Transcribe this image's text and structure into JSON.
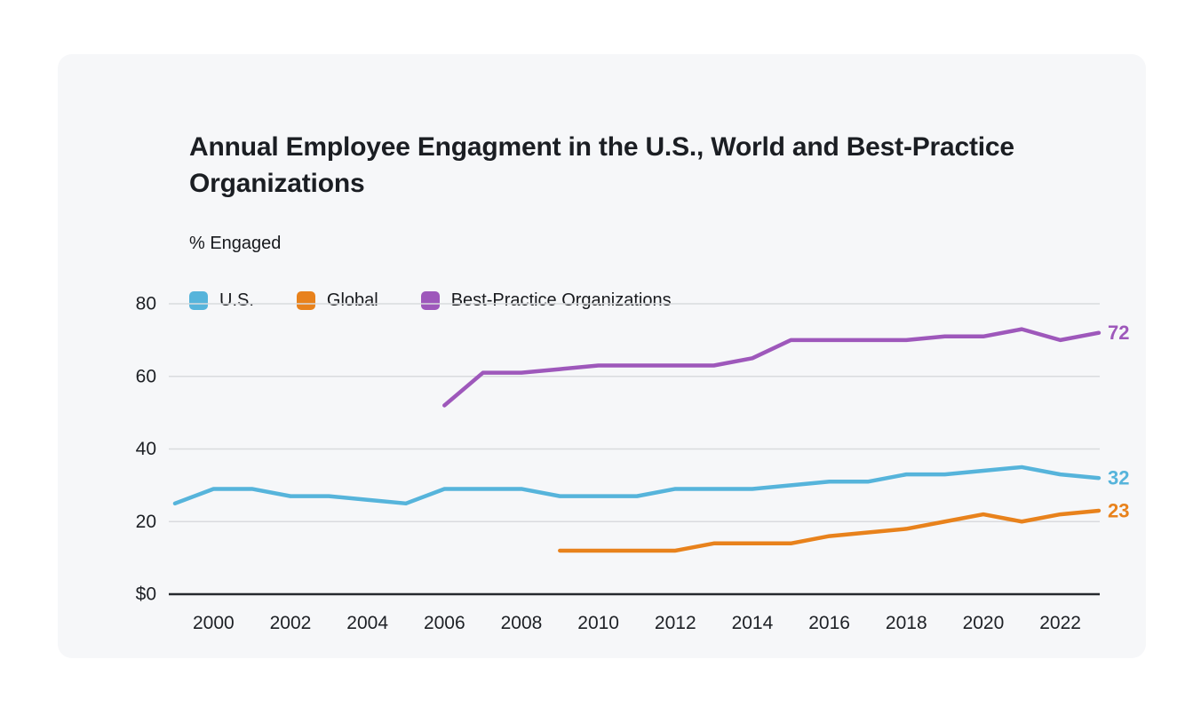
{
  "chart_data": {
    "type": "line",
    "title": "Annual Employee Engagment in the U.S., World and Best-Practice Organizations",
    "ylabel": "% Engaged",
    "grid": true,
    "legend_position": "top-left",
    "x_axis": {
      "ticks": [
        2000,
        2002,
        2004,
        2006,
        2008,
        2010,
        2012,
        2014,
        2016,
        2018,
        2020,
        2022
      ],
      "range": [
        1999,
        2023
      ]
    },
    "y_axis": {
      "ticks": [
        0,
        20,
        40,
        60,
        80
      ],
      "tick_labels": [
        "$0",
        "20",
        "40",
        "60",
        "80"
      ],
      "range": [
        0,
        87
      ]
    },
    "series": [
      {
        "name": "U.S.",
        "slug": "us",
        "color": "#56b4db",
        "start_year": 1999,
        "years": [
          1999,
          2000,
          2001,
          2002,
          2003,
          2004,
          2005,
          2006,
          2007,
          2008,
          2009,
          2010,
          2011,
          2012,
          2013,
          2014,
          2015,
          2016,
          2017,
          2018,
          2019,
          2020,
          2021,
          2022,
          2023
        ],
        "values": [
          25,
          29,
          29,
          27,
          27,
          26,
          25,
          29,
          29,
          29,
          27,
          27,
          27,
          29,
          29,
          29,
          30,
          31,
          31,
          33,
          33,
          34,
          35,
          33,
          32
        ],
        "end_label": "32"
      },
      {
        "name": "Global",
        "slug": "global",
        "color": "#e8821c",
        "start_year": 2009,
        "years": [
          2009,
          2010,
          2011,
          2012,
          2013,
          2014,
          2015,
          2016,
          2017,
          2018,
          2019,
          2020,
          2021,
          2022,
          2023
        ],
        "values": [
          12,
          12,
          12,
          12,
          14,
          14,
          14,
          16,
          17,
          18,
          20,
          22,
          20,
          22,
          23
        ],
        "end_label": "23"
      },
      {
        "name": "Best-Practice Organizations",
        "slug": "best-practice",
        "color": "#9e58bb",
        "start_year": 2006,
        "years": [
          2006,
          2007,
          2008,
          2009,
          2010,
          2011,
          2012,
          2013,
          2014,
          2015,
          2016,
          2017,
          2018,
          2019,
          2020,
          2021,
          2022,
          2023
        ],
        "values": [
          52,
          61,
          61,
          62,
          63,
          63,
          63,
          63,
          65,
          70,
          70,
          70,
          70,
          71,
          71,
          73,
          70,
          72
        ],
        "end_label": "72"
      }
    ]
  }
}
